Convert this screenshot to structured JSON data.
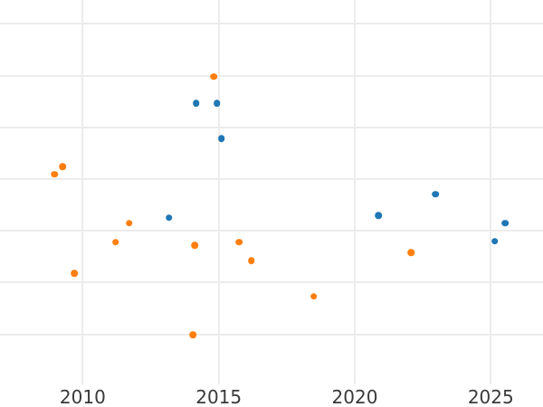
{
  "chart_data": {
    "type": "scatter",
    "title": "",
    "xlabel": "",
    "ylabel": "",
    "legend_position": "none",
    "grid": true,
    "x_tick_labels": [
      "2010",
      "2015",
      "2020",
      "2025"
    ],
    "x_ticks": [
      2010,
      2015,
      2020,
      2025
    ],
    "x_range_visible": [
      2006.96,
      2026.92
    ],
    "y_range_visible": [
      0.03,
      7.46
    ],
    "y_gridline_values": [
      1,
      2,
      3,
      4,
      5,
      6,
      7
    ],
    "y_tick_labels_visible": false,
    "note": "Left portion of figure (y-axis tick labels) and top are cropped out of view; y values estimated in gridline units where each horizontal gridline is one unit above the plot bottom.",
    "series": [
      {
        "name": "blue-series",
        "color": "#1f77b4",
        "points": [
          {
            "x": 2013.17,
            "y": 3.25
          },
          {
            "x": 2014.17,
            "y": 5.46
          },
          {
            "x": 2014.94,
            "y": 5.46
          },
          {
            "x": 2015.1,
            "y": 4.78
          },
          {
            "x": 2020.87,
            "y": 3.3
          },
          {
            "x": 2022.96,
            "y": 3.71
          },
          {
            "x": 2025.15,
            "y": 2.8
          },
          {
            "x": 2025.52,
            "y": 3.15
          }
        ]
      },
      {
        "name": "orange-series",
        "color": "#ff7f0e",
        "points": [
          {
            "x": 2008.96,
            "y": 4.09
          },
          {
            "x": 2009.27,
            "y": 4.24
          },
          {
            "x": 2009.69,
            "y": 2.18
          },
          {
            "x": 2011.21,
            "y": 2.78
          },
          {
            "x": 2011.71,
            "y": 3.15
          },
          {
            "x": 2014.05,
            "y": 0.99
          },
          {
            "x": 2014.11,
            "y": 2.72
          },
          {
            "x": 2014.82,
            "y": 5.98
          },
          {
            "x": 2015.75,
            "y": 2.78
          },
          {
            "x": 2016.2,
            "y": 2.42
          },
          {
            "x": 2018.49,
            "y": 1.73
          },
          {
            "x": 2022.06,
            "y": 2.58
          }
        ]
      }
    ],
    "colors": {
      "background": "#ffffff",
      "gridline": "#ececec",
      "tick_label": "#3a3a3a"
    }
  }
}
